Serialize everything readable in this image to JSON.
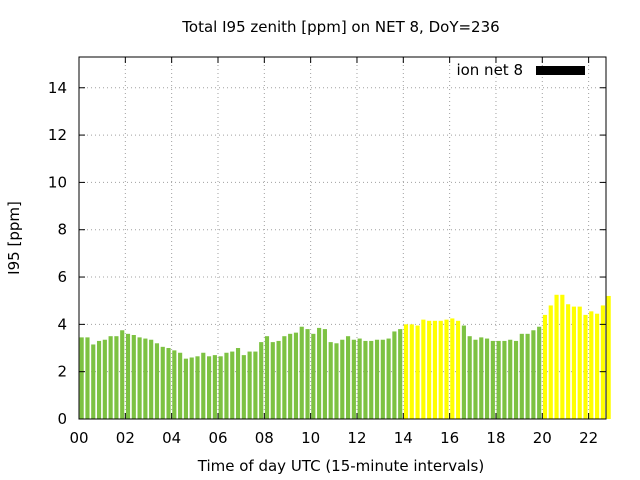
{
  "chart_data": {
    "type": "bar",
    "title": "Total I95 zenith [ppm] on NET 8, DoY=236",
    "xlabel": "Time of day UTC (15-minute intervals)",
    "ylabel": "I95 [ppm]",
    "xlim": [
      0,
      22.75
    ],
    "ylim": [
      0,
      15.3
    ],
    "xticks": [
      "00",
      "02",
      "04",
      "06",
      "08",
      "10",
      "12",
      "14",
      "16",
      "18",
      "20",
      "22"
    ],
    "yticks": [
      "0",
      "2",
      "4",
      "6",
      "8",
      "10",
      "12",
      "14"
    ],
    "grid": true,
    "legend": {
      "label": "ion net 8",
      "placement": "top-right",
      "color": "#000000"
    },
    "colors": {
      "normal": "#7dc242",
      "highlight": "#ffff00"
    },
    "interval_hours": 0.25,
    "values": [
      3.45,
      3.45,
      3.15,
      3.3,
      3.35,
      3.5,
      3.5,
      3.75,
      3.6,
      3.55,
      3.45,
      3.4,
      3.35,
      3.2,
      3.05,
      3.0,
      2.9,
      2.8,
      2.55,
      2.6,
      2.65,
      2.8,
      2.65,
      2.7,
      2.65,
      2.8,
      2.85,
      3.0,
      2.7,
      2.85,
      2.85,
      3.25,
      3.5,
      3.25,
      3.3,
      3.5,
      3.6,
      3.65,
      3.9,
      3.8,
      3.6,
      3.85,
      3.8,
      3.25,
      3.2,
      3.35,
      3.5,
      3.35,
      3.4,
      3.3,
      3.3,
      3.35,
      3.35,
      3.4,
      3.7,
      3.8,
      4.0,
      4.0,
      3.95,
      4.2,
      4.15,
      4.15,
      4.15,
      4.2,
      4.25,
      4.15,
      3.95,
      3.5,
      3.35,
      3.45,
      3.4,
      3.3,
      3.3,
      3.3,
      3.35,
      3.3,
      3.6,
      3.6,
      3.75,
      3.9,
      4.4,
      4.8,
      5.25,
      5.25,
      4.85,
      4.75,
      4.75,
      4.4,
      4.55,
      4.45,
      4.8,
      5.2
    ],
    "highlighted_index_ranges": [
      [
        56,
        65
      ],
      [
        80,
        91
      ]
    ]
  }
}
